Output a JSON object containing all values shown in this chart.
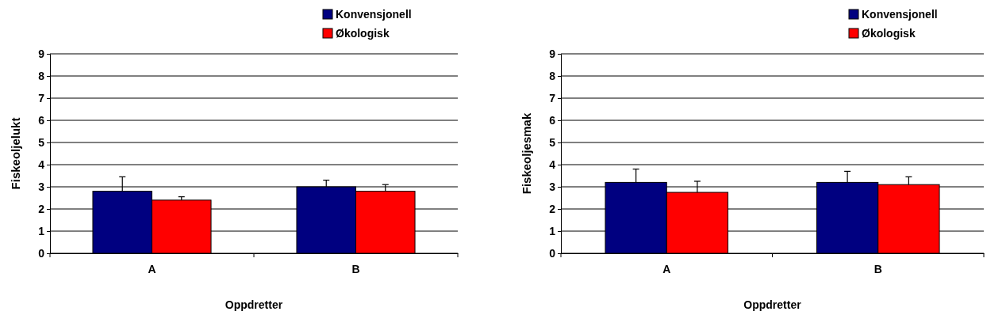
{
  "chart_data": [
    {
      "type": "bar",
      "xlabel": "Oppdretter",
      "ylabel": "Fiskeoljelukt",
      "categories": [
        "A",
        "B"
      ],
      "series": [
        {
          "name": "Konvensjonell",
          "color": "#000080",
          "values": [
            2.8,
            3.0
          ],
          "errors": [
            [
              2.8,
              3.45
            ],
            [
              3.0,
              3.3
            ]
          ]
        },
        {
          "name": "Økologisk",
          "color": "#ff0000",
          "values": [
            2.4,
            2.8
          ],
          "errors": [
            [
              2.4,
              2.55
            ],
            [
              2.8,
              3.1
            ]
          ]
        }
      ],
      "ylim": [
        0,
        9
      ],
      "yticks": [
        0,
        1,
        2,
        3,
        4,
        5,
        6,
        7,
        8,
        9
      ],
      "grid": "y",
      "legend": "top right"
    },
    {
      "type": "bar",
      "xlabel": "Oppdretter",
      "ylabel": "Fiskeoljesmak",
      "categories": [
        "A",
        "B"
      ],
      "series": [
        {
          "name": "Konvensjonell",
          "color": "#000080",
          "values": [
            3.2,
            3.2
          ],
          "errors": [
            [
              3.2,
              3.8
            ],
            [
              3.2,
              3.7
            ]
          ]
        },
        {
          "name": "Økologisk",
          "color": "#ff0000",
          "values": [
            2.75,
            3.1
          ],
          "errors": [
            [
              2.75,
              3.25
            ],
            [
              3.1,
              3.45
            ]
          ]
        }
      ],
      "ylim": [
        0,
        9
      ],
      "yticks": [
        0,
        1,
        2,
        3,
        4,
        5,
        6,
        7,
        8,
        9
      ],
      "grid": "y",
      "legend": "top right"
    }
  ]
}
